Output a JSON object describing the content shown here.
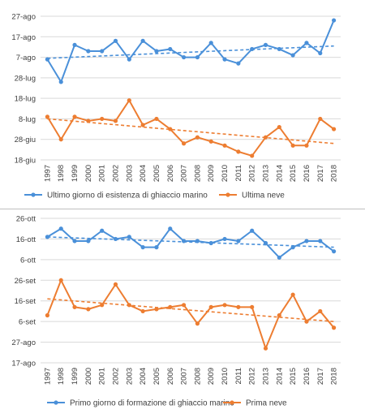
{
  "colors": {
    "ice": "#4a90d9",
    "snow": "#ed7d31",
    "grid": "#d9d9d9",
    "text": "#404040"
  },
  "chart_data": [
    {
      "type": "line",
      "x": [
        "1997",
        "1998",
        "1999",
        "2000",
        "2001",
        "2002",
        "2003",
        "2004",
        "2005",
        "2006",
        "2007",
        "2008",
        "2009",
        "2010",
        "2011",
        "2012",
        "2013",
        "2014",
        "2015",
        "2016",
        "2017",
        "2018"
      ],
      "y_axis": {
        "unit": "days from 18-giu",
        "ticks": [
          {
            "label": "18-giu",
            "value": 0
          },
          {
            "label": "28-giu",
            "value": 10
          },
          {
            "label": "8-lug",
            "value": 20
          },
          {
            "label": "18-lug",
            "value": 30
          },
          {
            "label": "28-lug",
            "value": 40
          },
          {
            "label": "7-ago",
            "value": 50
          },
          {
            "label": "17-ago",
            "value": 60
          },
          {
            "label": "27-ago",
            "value": 70
          }
        ],
        "ylim": [
          0,
          70
        ]
      },
      "grid": true,
      "legend_position": "bottom",
      "series": [
        {
          "name": "Ultimo giorno di esistenza di ghiaccio marino",
          "color": "#4a90d9",
          "values": [
            49,
            38,
            56,
            53,
            53,
            58,
            49,
            58,
            53,
            54,
            50,
            50,
            57,
            49,
            47,
            54,
            56,
            54,
            51,
            57,
            52,
            68
          ],
          "trend": [
            49.5,
            55.5
          ]
        },
        {
          "name": "Ultima neve",
          "color": "#ed7d31",
          "values": [
            21,
            10,
            21,
            19,
            20,
            19,
            29,
            17,
            20,
            15,
            8,
            11,
            9,
            7,
            4,
            2,
            11,
            16,
            7,
            7,
            20,
            15
          ],
          "trend": [
            20,
            8
          ]
        }
      ]
    },
    {
      "type": "line",
      "x": [
        "1997",
        "1998",
        "1999",
        "2000",
        "2001",
        "2002",
        "2003",
        "2004",
        "2005",
        "2006",
        "2007",
        "2008",
        "2009",
        "2010",
        "2011",
        "2012",
        "2013",
        "2014",
        "2015",
        "2016",
        "2017",
        "2018"
      ],
      "y_axis": {
        "unit": "days from 17-ago",
        "ticks": [
          {
            "label": "17-ago",
            "value": 0
          },
          {
            "label": "27-ago",
            "value": 10
          },
          {
            "label": "6-set",
            "value": 20
          },
          {
            "label": "16-set",
            "value": 30
          },
          {
            "label": "26-set",
            "value": 40
          },
          {
            "label": "6-ott",
            "value": 50
          },
          {
            "label": "16-ott",
            "value": 60
          },
          {
            "label": "26-ott",
            "value": 70
          }
        ],
        "ylim": [
          0,
          70
        ]
      },
      "grid": true,
      "legend_position": "bottom",
      "series": [
        {
          "name": "Primo giorno di formazione di ghiaccio marino",
          "color": "#4a90d9",
          "values": [
            61,
            65,
            59,
            59,
            64,
            60,
            61,
            56,
            56,
            65,
            59,
            59,
            58,
            60,
            59,
            64,
            58,
            51,
            56,
            59,
            59,
            54
          ],
          "trend": [
            61,
            56
          ]
        },
        {
          "name": "Prima neve",
          "color": "#ed7d31",
          "values": [
            23,
            40,
            27,
            26,
            28,
            38,
            28,
            25,
            26,
            27,
            28,
            19,
            27,
            28,
            27,
            27,
            7,
            23,
            33,
            20,
            25,
            17
          ],
          "trend": [
            31,
            20
          ]
        }
      ]
    }
  ]
}
